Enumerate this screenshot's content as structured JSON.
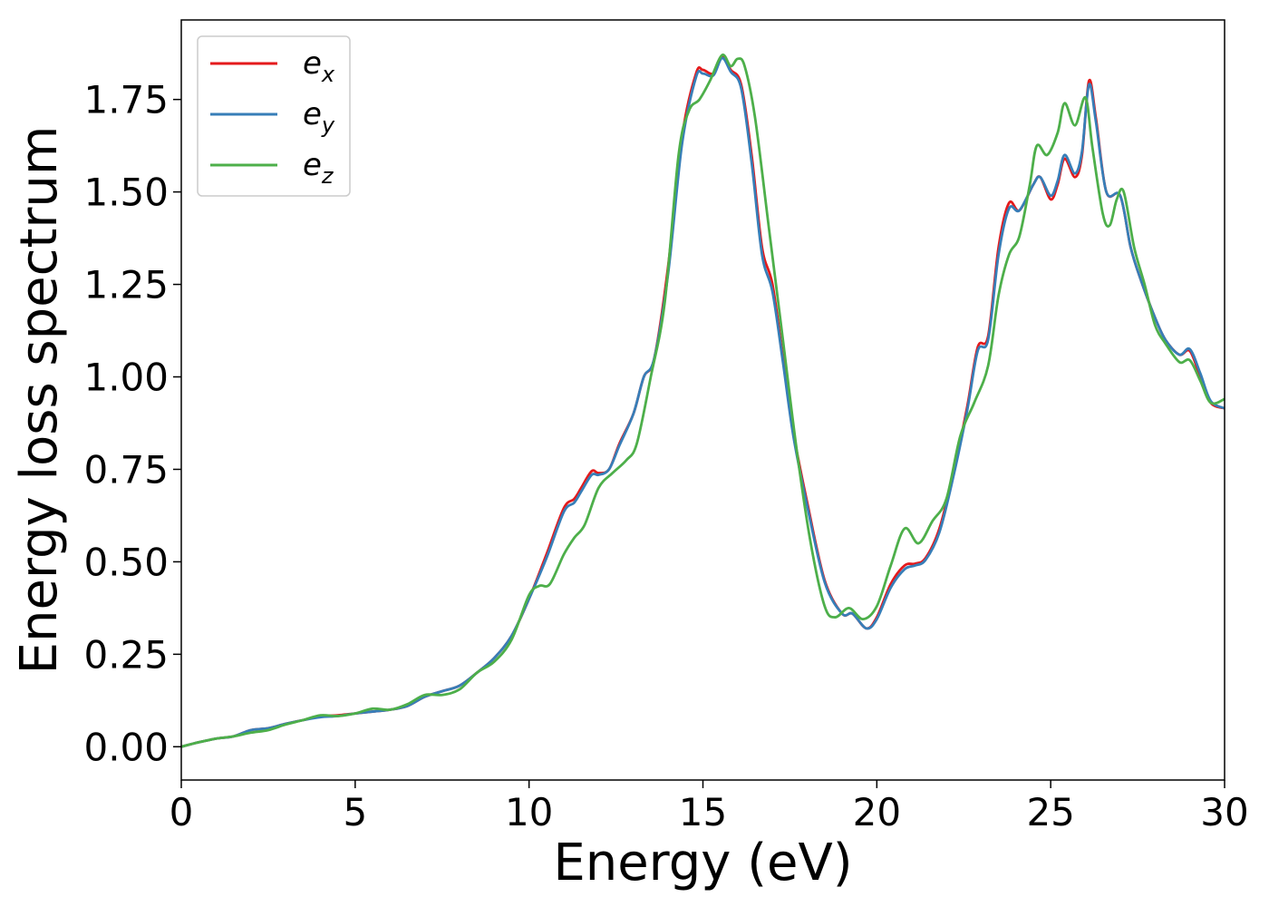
{
  "chart_data": {
    "type": "line",
    "title": "",
    "xlabel": "Energy (eV)",
    "ylabel": "Energy loss spectrum",
    "xlim": [
      0,
      30
    ],
    "ylim": [
      -0.09,
      1.965
    ],
    "xticks": [
      0,
      5,
      10,
      15,
      20,
      25,
      30
    ],
    "xtick_labels": [
      "0",
      "5",
      "10",
      "15",
      "20",
      "25",
      "30"
    ],
    "yticks": [
      0.0,
      0.25,
      0.5,
      0.75,
      1.0,
      1.25,
      1.5,
      1.75
    ],
    "ytick_labels": [
      "0.00",
      "0.25",
      "0.50",
      "0.75",
      "1.00",
      "1.25",
      "1.50",
      "1.75"
    ],
    "grid": false,
    "legend": {
      "position": "upper-left"
    },
    "series": [
      {
        "name": "e_x",
        "label_base": "e",
        "label_sub": "x",
        "color": "#e41a1c",
        "points": [
          [
            0,
            0.0
          ],
          [
            0.5,
            0.012
          ],
          [
            1.0,
            0.022
          ],
          [
            1.5,
            0.028
          ],
          [
            2.0,
            0.045
          ],
          [
            2.5,
            0.05
          ],
          [
            3.0,
            0.062
          ],
          [
            3.5,
            0.072
          ],
          [
            4.0,
            0.082
          ],
          [
            4.5,
            0.085
          ],
          [
            5.0,
            0.09
          ],
          [
            5.5,
            0.095
          ],
          [
            6.0,
            0.1
          ],
          [
            6.5,
            0.11
          ],
          [
            7.0,
            0.135
          ],
          [
            7.5,
            0.15
          ],
          [
            8.0,
            0.165
          ],
          [
            8.5,
            0.2
          ],
          [
            9.0,
            0.24
          ],
          [
            9.5,
            0.3
          ],
          [
            10.0,
            0.4
          ],
          [
            10.5,
            0.52
          ],
          [
            11.0,
            0.645
          ],
          [
            11.3,
            0.67
          ],
          [
            11.5,
            0.7
          ],
          [
            11.8,
            0.745
          ],
          [
            12.0,
            0.74
          ],
          [
            12.3,
            0.75
          ],
          [
            12.6,
            0.82
          ],
          [
            13.0,
            0.9
          ],
          [
            13.3,
            1.0
          ],
          [
            13.6,
            1.05
          ],
          [
            14.0,
            1.3
          ],
          [
            14.4,
            1.65
          ],
          [
            14.8,
            1.82
          ],
          [
            15.0,
            1.83
          ],
          [
            15.3,
            1.82
          ],
          [
            15.55,
            1.865
          ],
          [
            15.8,
            1.83
          ],
          [
            16.1,
            1.79
          ],
          [
            16.4,
            1.6
          ],
          [
            16.7,
            1.35
          ],
          [
            17.0,
            1.25
          ],
          [
            17.3,
            1.05
          ],
          [
            17.6,
            0.85
          ],
          [
            18.0,
            0.66
          ],
          [
            18.5,
            0.45
          ],
          [
            19.0,
            0.36
          ],
          [
            19.3,
            0.36
          ],
          [
            19.7,
            0.32
          ],
          [
            20.0,
            0.35
          ],
          [
            20.4,
            0.44
          ],
          [
            20.8,
            0.49
          ],
          [
            21.1,
            0.495
          ],
          [
            21.4,
            0.51
          ],
          [
            21.8,
            0.59
          ],
          [
            22.2,
            0.74
          ],
          [
            22.6,
            0.92
          ],
          [
            22.9,
            1.08
          ],
          [
            23.2,
            1.11
          ],
          [
            23.5,
            1.35
          ],
          [
            23.8,
            1.47
          ],
          [
            24.1,
            1.45
          ],
          [
            24.5,
            1.52
          ],
          [
            24.7,
            1.54
          ],
          [
            25.0,
            1.48
          ],
          [
            25.2,
            1.52
          ],
          [
            25.4,
            1.59
          ],
          [
            25.7,
            1.54
          ],
          [
            25.9,
            1.6
          ],
          [
            26.1,
            1.8
          ],
          [
            26.3,
            1.7
          ],
          [
            26.6,
            1.5
          ],
          [
            27.0,
            1.49
          ],
          [
            27.3,
            1.35
          ],
          [
            27.6,
            1.26
          ],
          [
            28.0,
            1.16
          ],
          [
            28.3,
            1.1
          ],
          [
            28.7,
            1.06
          ],
          [
            29.0,
            1.07
          ],
          [
            29.3,
            1.0
          ],
          [
            29.6,
            0.93
          ],
          [
            30.0,
            0.915
          ]
        ]
      },
      {
        "name": "e_y",
        "label_base": "e",
        "label_sub": "y",
        "color": "#377eb8",
        "points": [
          [
            0,
            0.0
          ],
          [
            0.5,
            0.012
          ],
          [
            1.0,
            0.022
          ],
          [
            1.5,
            0.028
          ],
          [
            2.0,
            0.045
          ],
          [
            2.5,
            0.05
          ],
          [
            3.0,
            0.062
          ],
          [
            3.5,
            0.072
          ],
          [
            4.0,
            0.08
          ],
          [
            4.5,
            0.083
          ],
          [
            5.0,
            0.09
          ],
          [
            5.5,
            0.095
          ],
          [
            6.0,
            0.1
          ],
          [
            6.5,
            0.11
          ],
          [
            7.0,
            0.135
          ],
          [
            7.5,
            0.15
          ],
          [
            8.0,
            0.165
          ],
          [
            8.5,
            0.2
          ],
          [
            9.0,
            0.24
          ],
          [
            9.5,
            0.3
          ],
          [
            10.0,
            0.4
          ],
          [
            10.5,
            0.51
          ],
          [
            11.0,
            0.635
          ],
          [
            11.3,
            0.66
          ],
          [
            11.5,
            0.69
          ],
          [
            11.8,
            0.735
          ],
          [
            12.0,
            0.735
          ],
          [
            12.3,
            0.75
          ],
          [
            12.6,
            0.815
          ],
          [
            13.0,
            0.9
          ],
          [
            13.3,
            1.0
          ],
          [
            13.6,
            1.05
          ],
          [
            14.0,
            1.28
          ],
          [
            14.4,
            1.63
          ],
          [
            14.8,
            1.81
          ],
          [
            15.0,
            1.82
          ],
          [
            15.3,
            1.815
          ],
          [
            15.55,
            1.862
          ],
          [
            15.8,
            1.825
          ],
          [
            16.1,
            1.78
          ],
          [
            16.4,
            1.58
          ],
          [
            16.7,
            1.33
          ],
          [
            17.0,
            1.23
          ],
          [
            17.3,
            1.04
          ],
          [
            17.6,
            0.84
          ],
          [
            18.0,
            0.65
          ],
          [
            18.5,
            0.445
          ],
          [
            19.0,
            0.36
          ],
          [
            19.3,
            0.36
          ],
          [
            19.7,
            0.32
          ],
          [
            20.0,
            0.345
          ],
          [
            20.4,
            0.43
          ],
          [
            20.8,
            0.48
          ],
          [
            21.1,
            0.49
          ],
          [
            21.4,
            0.505
          ],
          [
            21.8,
            0.58
          ],
          [
            22.2,
            0.73
          ],
          [
            22.6,
            0.91
          ],
          [
            22.9,
            1.07
          ],
          [
            23.2,
            1.1
          ],
          [
            23.5,
            1.33
          ],
          [
            23.8,
            1.455
          ],
          [
            24.1,
            1.45
          ],
          [
            24.5,
            1.52
          ],
          [
            24.7,
            1.54
          ],
          [
            25.0,
            1.49
          ],
          [
            25.2,
            1.53
          ],
          [
            25.4,
            1.6
          ],
          [
            25.7,
            1.55
          ],
          [
            25.9,
            1.61
          ],
          [
            26.1,
            1.79
          ],
          [
            26.3,
            1.69
          ],
          [
            26.6,
            1.5
          ],
          [
            27.0,
            1.49
          ],
          [
            27.3,
            1.35
          ],
          [
            27.6,
            1.26
          ],
          [
            28.0,
            1.16
          ],
          [
            28.3,
            1.1
          ],
          [
            28.7,
            1.06
          ],
          [
            29.0,
            1.075
          ],
          [
            29.3,
            1.01
          ],
          [
            29.6,
            0.935
          ],
          [
            30.0,
            0.915
          ]
        ]
      },
      {
        "name": "e_z",
        "label_base": "e",
        "label_sub": "z",
        "color": "#4daf4a",
        "points": [
          [
            0,
            0.0
          ],
          [
            0.5,
            0.012
          ],
          [
            1.0,
            0.022
          ],
          [
            1.5,
            0.028
          ],
          [
            2.0,
            0.038
          ],
          [
            2.5,
            0.045
          ],
          [
            3.0,
            0.06
          ],
          [
            3.5,
            0.072
          ],
          [
            4.0,
            0.085
          ],
          [
            4.5,
            0.083
          ],
          [
            5.0,
            0.09
          ],
          [
            5.5,
            0.103
          ],
          [
            6.0,
            0.1
          ],
          [
            6.5,
            0.115
          ],
          [
            7.0,
            0.14
          ],
          [
            7.5,
            0.14
          ],
          [
            8.0,
            0.155
          ],
          [
            8.5,
            0.2
          ],
          [
            9.0,
            0.23
          ],
          [
            9.5,
            0.29
          ],
          [
            10.0,
            0.41
          ],
          [
            10.3,
            0.435
          ],
          [
            10.6,
            0.44
          ],
          [
            11.0,
            0.52
          ],
          [
            11.3,
            0.565
          ],
          [
            11.6,
            0.6
          ],
          [
            12.0,
            0.7
          ],
          [
            12.4,
            0.74
          ],
          [
            12.8,
            0.775
          ],
          [
            13.1,
            0.82
          ],
          [
            13.5,
            1.0
          ],
          [
            13.9,
            1.2
          ],
          [
            14.3,
            1.6
          ],
          [
            14.6,
            1.72
          ],
          [
            14.9,
            1.75
          ],
          [
            15.2,
            1.8
          ],
          [
            15.55,
            1.87
          ],
          [
            15.8,
            1.84
          ],
          [
            16.0,
            1.86
          ],
          [
            16.2,
            1.84
          ],
          [
            16.5,
            1.7
          ],
          [
            16.9,
            1.4
          ],
          [
            17.3,
            1.1
          ],
          [
            17.7,
            0.8
          ],
          [
            18.1,
            0.55
          ],
          [
            18.5,
            0.38
          ],
          [
            18.8,
            0.35
          ],
          [
            19.2,
            0.375
          ],
          [
            19.6,
            0.345
          ],
          [
            20.0,
            0.38
          ],
          [
            20.4,
            0.49
          ],
          [
            20.8,
            0.59
          ],
          [
            21.2,
            0.55
          ],
          [
            21.6,
            0.61
          ],
          [
            22.0,
            0.67
          ],
          [
            22.4,
            0.84
          ],
          [
            22.8,
            0.93
          ],
          [
            23.2,
            1.03
          ],
          [
            23.5,
            1.22
          ],
          [
            23.8,
            1.33
          ],
          [
            24.1,
            1.38
          ],
          [
            24.4,
            1.52
          ],
          [
            24.6,
            1.625
          ],
          [
            24.9,
            1.6
          ],
          [
            25.2,
            1.66
          ],
          [
            25.4,
            1.74
          ],
          [
            25.7,
            1.68
          ],
          [
            26.0,
            1.755
          ],
          [
            26.2,
            1.62
          ],
          [
            26.5,
            1.44
          ],
          [
            26.7,
            1.41
          ],
          [
            26.9,
            1.48
          ],
          [
            27.1,
            1.5
          ],
          [
            27.4,
            1.35
          ],
          [
            27.7,
            1.25
          ],
          [
            28.0,
            1.14
          ],
          [
            28.3,
            1.09
          ],
          [
            28.7,
            1.04
          ],
          [
            29.0,
            1.045
          ],
          [
            29.3,
            0.99
          ],
          [
            29.6,
            0.93
          ],
          [
            30.0,
            0.94
          ]
        ]
      }
    ]
  }
}
